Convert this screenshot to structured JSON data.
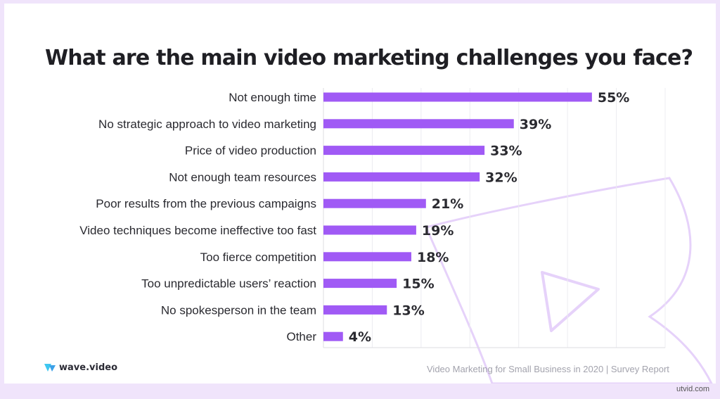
{
  "chart_data": {
    "type": "bar",
    "orientation": "horizontal",
    "title": "What are the main video marketing challenges you face?",
    "categories": [
      "Not enough time",
      "No strategic approach to video marketing",
      "Price of video production",
      "Not enough team resources",
      "Poor results from the previous campaigns",
      "Video techniques become ineffective too fast",
      "Too fierce competition",
      "Too unpredictable users’ reaction",
      "No spokesperson in the team",
      "Other"
    ],
    "values": [
      55,
      39,
      33,
      32,
      21,
      19,
      18,
      15,
      13,
      4
    ],
    "value_labels": [
      "55%",
      "39%",
      "33%",
      "32%",
      "21%",
      "19%",
      "18%",
      "15%",
      "13%",
      "4%"
    ],
    "unit": "%",
    "xlim": [
      0,
      70
    ],
    "grid": "vertical",
    "bar_color": "#a05af5"
  },
  "brand": {
    "logo_text": "wave.video",
    "logo_icon": "wave-logo-icon",
    "accent": "#3ec7f0"
  },
  "footer": {
    "source": "Video Marketing for Small Business in 2020 | Survey Report"
  },
  "watermark": {
    "text": "utvid.com"
  },
  "colors": {
    "background": "#f0e4fb",
    "card": "#ffffff",
    "deco_outline": "#e3cdfa"
  }
}
